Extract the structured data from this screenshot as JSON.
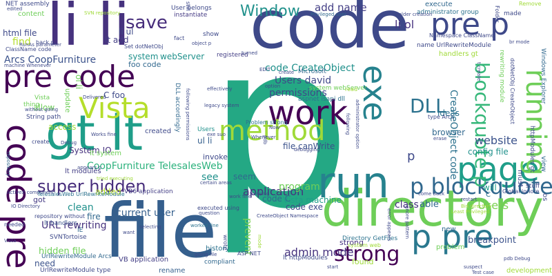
{
  "words": [
    {
      "text": "p",
      "color": "#24a884"
    },
    {
      "text": "code",
      "color": "#3e4989"
    },
    {
      "text": "file",
      "color": "#355f8d"
    },
    {
      "text": "directory",
      "color": "#6ece58"
    },
    {
      "text": "li li",
      "color": "#46327e"
    },
    {
      "text": "pre code",
      "color": "#440154"
    },
    {
      "text": "gt lt",
      "color": "#1f9e89"
    },
    {
      "text": "Vista",
      "color": "#b5de2b"
    },
    {
      "text": "work",
      "color": "#440154"
    },
    {
      "text": "run",
      "color": "#26828e"
    },
    {
      "text": "page",
      "color": "#1f9e89"
    },
    {
      "text": "method",
      "color": "#a0da39"
    },
    {
      "text": "p pre",
      "color": "#2a788e"
    },
    {
      "text": "pre p",
      "color": "#3e4989"
    },
    {
      "text": "code pre",
      "color": "#440154"
    },
    {
      "text": "p blockquote",
      "color": "#31688e"
    },
    {
      "text": "super hidden",
      "color": "#472d7b"
    },
    {
      "text": "blockquote p",
      "color": "#35b779"
    },
    {
      "text": "running",
      "color": "#6ece58"
    },
    {
      "text": "exe",
      "color": "#26828e"
    },
    {
      "text": "strong",
      "color": "#440154"
    },
    {
      "text": "DLL",
      "color": "#2c728e"
    },
    {
      "text": "save",
      "color": "#472d7b"
    },
    {
      "text": "Window",
      "color": "#21918c"
    },
    {
      "text": "add name",
      "color": "#433e85"
    },
    {
      "text": "li ol",
      "color": "#46327e"
    },
    {
      "text": "Arcs CoopFurniture",
      "color": "#3b528b"
    },
    {
      "text": "code CreateObject",
      "color": "#21918c"
    },
    {
      "text": "Users david",
      "color": "#3e4989"
    },
    {
      "text": "CoopFurniture TelesalesWeb",
      "color": "#2db27d"
    },
    {
      "text": "application",
      "color": "#46327e"
    },
    {
      "text": "Vista machine",
      "color": "#1f9e89"
    },
    {
      "text": "code exe",
      "color": "#3e4989"
    },
    {
      "text": "C Users",
      "color": "#7ad151"
    },
    {
      "text": "current user",
      "color": "#355f8d"
    },
    {
      "text": "admin mode",
      "color": "#46327e"
    },
    {
      "text": "URL rewriting",
      "color": "#46327e"
    },
    {
      "text": "config file",
      "color": "#21918c"
    },
    {
      "text": "website",
      "color": "#3b528b"
    },
    {
      "text": "breakpoint",
      "color": "#3b528b"
    },
    {
      "text": "clean",
      "color": "#21918c"
    },
    {
      "text": "program",
      "color": "#6ece58"
    },
    {
      "text": "permissions",
      "color": "#3e4989"
    },
    {
      "text": "file canWrite",
      "color": "#3b528b"
    },
    {
      "text": "ideas",
      "color": "#2c728e"
    },
    {
      "text": "class",
      "color": "#46327e"
    },
    {
      "text": "able",
      "color": "#31688e"
    },
    {
      "text": "will",
      "color": "#1f9e89"
    },
    {
      "text": "html file",
      "color": "#3e4989"
    },
    {
      "text": "find",
      "color": "#b5de2b"
    },
    {
      "text": "content",
      "color": "#6ece58"
    },
    {
      "text": "li ul",
      "color": "#3e4989"
    },
    {
      "text": "lt add",
      "color": "#433e85"
    },
    {
      "text": "system",
      "color": "#21918c"
    },
    {
      "text": "webServer",
      "color": "#21918c"
    },
    {
      "text": "registered",
      "color": "#433e85"
    },
    {
      "text": "foo code",
      "color": "#31688e"
    },
    {
      "text": "C foo",
      "color": "#3e4989"
    },
    {
      "text": "System IO",
      "color": "#46327e"
    },
    {
      "text": "lt modules",
      "color": "#433e85"
    },
    {
      "text": "lt system",
      "color": "#6ece58"
    },
    {
      "text": "need",
      "color": "#3b528b"
    },
    {
      "text": "hidden file",
      "color": "#6ece58"
    },
    {
      "text": "got",
      "color": "#443983"
    },
    {
      "text": "see",
      "color": "#21918c"
    },
    {
      "text": "seem",
      "color": "#31688e"
    },
    {
      "text": "code C",
      "color": "#31688e"
    },
    {
      "text": "p",
      "color": "#3e4989"
    },
    {
      "text": "VB application",
      "color": "#433e85"
    },
    {
      "text": "history",
      "color": "#2c728e"
    },
    {
      "text": "rename",
      "color": "#355f8d"
    },
    {
      "text": "invoke",
      "color": "#3e4989"
    },
    {
      "text": "prevent",
      "color": "#7ad151"
    },
    {
      "text": "found",
      "color": "#a0da39"
    },
    {
      "text": "strong",
      "color": "#46327e"
    },
    {
      "text": "ul li",
      "color": "#355f8d"
    },
    {
      "text": "lt httpModules",
      "color": "#3e4989"
    },
    {
      "text": "Directory GetFiles",
      "color": "#2c728e"
    },
    {
      "text": "problem",
      "color": "#6ece58"
    },
    {
      "text": "browser",
      "color": "#31688e"
    },
    {
      "text": "allow",
      "color": "#6ece58"
    },
    {
      "text": "NET assembly",
      "color": "#3e4989"
    },
    {
      "text": "User belongs",
      "color": "#3e4989"
    },
    {
      "text": "execute",
      "color": "#31688e"
    },
    {
      "text": "instantiate",
      "color": "#443983"
    },
    {
      "text": "administrator group",
      "color": "#2c728e"
    },
    {
      "text": "name UrlRewriteModule",
      "color": "#3e4989"
    },
    {
      "text": "Microsoft",
      "color": "#31688e"
    },
    {
      "text": "system webServer",
      "color": "#6ece58"
    },
    {
      "text": "VB6 application",
      "color": "#433e85"
    },
    {
      "text": "String path",
      "color": "#3e4989"
    },
    {
      "text": "thing",
      "color": "#6ece58"
    },
    {
      "text": "access",
      "color": "#a0da39"
    },
    {
      "text": "created",
      "color": "#3e4989"
    },
    {
      "text": "added",
      "color": "#b5de2b"
    },
    {
      "text": "Vista",
      "color": "#6ece58"
    },
    {
      "text": "fire",
      "color": "#31688e"
    },
    {
      "text": "lt handlers",
      "color": "#3b528b"
    },
    {
      "text": "IE",
      "color": "#31688e"
    },
    {
      "text": "SVNTortoise",
      "color": "#3e4989"
    },
    {
      "text": "UrlRewriteModule Arcs",
      "color": "#31688e"
    },
    {
      "text": "UrlRewriteModule type",
      "color": "#3e4989"
    },
    {
      "text": "TelesalesWeb UrlRewriteModule",
      "color": "#2c728e"
    },
    {
      "text": "repository without",
      "color": "#3e4989"
    },
    {
      "text": "new",
      "color": "#31688e"
    },
    {
      "text": "development",
      "color": "#a0da39"
    },
    {
      "text": "compliant",
      "color": "#31688e"
    },
    {
      "text": "ASP NET",
      "color": "#3e4989"
    },
    {
      "text": "wrote",
      "color": "#3e4989"
    },
    {
      "text": "executed using",
      "color": "#3e4989"
    },
    {
      "text": "handlers gt",
      "color": "#a0da39"
    },
    {
      "text": "Namespace ClassName",
      "color": "#3e4989"
    },
    {
      "text": "Windows Explorer",
      "color": "#31688e"
    },
    {
      "text": "httpModules gt",
      "color": "#3e4989"
    },
    {
      "text": "Global ignore",
      "color": "#3e4989"
    },
    {
      "text": "stuff",
      "color": "#3e4989"
    },
    {
      "text": "must",
      "color": "#3e4989"
    },
    {
      "text": "C",
      "color": "#2c728e"
    },
    {
      "text": "view",
      "color": "#31688e"
    },
    {
      "text": "os",
      "color": "#3e4989"
    },
    {
      "text": "aspnet isapi dll",
      "color": "#2c728e"
    },
    {
      "text": "Problem strong",
      "color": "#2c728e"
    },
    {
      "text": "Users",
      "color": "#21918c"
    },
    {
      "text": "fact",
      "color": "#3e4989"
    },
    {
      "text": "show",
      "color": "#3e4989"
    },
    {
      "text": "made",
      "color": "#3e4989"
    },
    {
      "text": "Remove",
      "color": "#a0da39"
    },
    {
      "text": "Folder",
      "color": "#3e4989"
    },
    {
      "text": "RunAs parameter",
      "color": "#3e4989"
    },
    {
      "text": "ClassName code",
      "color": "#3e4989"
    },
    {
      "text": "SVN repository",
      "color": "#a0da39"
    },
    {
      "text": "Set dotNetObj",
      "color": "#3e4989"
    },
    {
      "text": "object p",
      "color": "#3e4989"
    },
    {
      "text": "back p",
      "color": "#3e4989"
    },
    {
      "text": "Privileged user",
      "color": "#31688e"
    },
    {
      "text": "Folder creation",
      "color": "#3e4989"
    },
    {
      "text": "edited",
      "color": "#3e4989"
    },
    {
      "text": "still",
      "color": "#3e4989"
    },
    {
      "text": "turned",
      "color": "#3e4989"
    },
    {
      "text": "machine Whenever",
      "color": "#3e4989"
    },
    {
      "text": "Debug",
      "color": "#3e4989"
    },
    {
      "text": "debugging",
      "color": "#3e4989"
    },
    {
      "text": "Whenever",
      "color": "#3e4989"
    },
    {
      "text": "certain areas",
      "color": "#3e4989"
    },
    {
      "text": "erase",
      "color": "#3e4989"
    },
    {
      "text": "Least Privileged",
      "color": "#a0da39"
    },
    {
      "text": "error appears",
      "color": "#3e4989"
    },
    {
      "text": "restart",
      "color": "#3e4989"
    },
    {
      "text": "Bin directory",
      "color": "#a0da39"
    },
    {
      "text": "suspect",
      "color": "#3e4989"
    },
    {
      "text": "Test case",
      "color": "#3e4989"
    },
    {
      "text": "pdb Debug",
      "color": "#3e4989"
    },
    {
      "text": "start",
      "color": "#3e4989"
    },
    {
      "text": "mode",
      "color": "#a0da39"
    },
    {
      "text": "worked fine",
      "color": "#2c728e"
    },
    {
      "text": "want",
      "color": "#3e4989"
    },
    {
      "text": "selecting",
      "color": "#3e4989"
    },
    {
      "text": "question",
      "color": "#3e4989"
    },
    {
      "text": "work fine",
      "color": "#3e4989"
    },
    {
      "text": "CreateObject Namespace",
      "color": "#3e4989"
    },
    {
      "text": "going file",
      "color": "#3e4989"
    },
    {
      "text": "system web",
      "color": "#a0da39"
    },
    {
      "text": "tried executing",
      "color": "#a0da39"
    },
    {
      "text": "Works fine",
      "color": "#3e4989"
    },
    {
      "text": "appears p",
      "color": "#3e4989"
    },
    {
      "text": "ActiveX component",
      "color": "#3e4989"
    },
    {
      "text": "IO Directory",
      "color": "#3e4989"
    },
    {
      "text": "repository",
      "color": "#31688e"
    },
    {
      "text": "needed",
      "color": "#3e4989"
    },
    {
      "text": "create",
      "color": "#3e4989"
    },
    {
      "text": "thinking",
      "color": "#3e4989"
    },
    {
      "text": "exe suo",
      "color": "#3e4989"
    },
    {
      "text": "Now",
      "color": "#3e4989"
    },
    {
      "text": "legacy system",
      "color": "#3e4989"
    },
    {
      "text": "effectively",
      "color": "#3e4989"
    },
    {
      "text": "Delivered",
      "color": "#3e4989"
    },
    {
      "text": "EDIT",
      "color": "#3e4989"
    },
    {
      "text": "come back",
      "color": "#3e4989"
    },
    {
      "text": "option",
      "color": "#3e4989"
    },
    {
      "text": "read",
      "color": "#a0da39"
    },
    {
      "text": "type Arcs",
      "color": "#3e4989"
    },
    {
      "text": "without going",
      "color": "#3e4989"
    },
    {
      "text": "create",
      "color": "#3e4989"
    },
    {
      "text": "br mode",
      "color": "#3e4989"
    },
    {
      "text": "ol li",
      "color": "#6ece58"
    },
    {
      "text": "update",
      "color": "#6ece58"
    },
    {
      "text": "DLL accordingly",
      "color": "#31688e"
    },
    {
      "text": "following permissions",
      "color": "#3e4989"
    },
    {
      "text": "CreateObject code",
      "color": "#2c728e"
    },
    {
      "text": "dotNetObj CreateObject",
      "color": "#3e4989"
    },
    {
      "text": "rewriting module",
      "color": "#6ece58"
    },
    {
      "text": "t create",
      "color": "#3e4989"
    },
    {
      "text": "administrator option",
      "color": "#3e4989"
    },
    {
      "text": "pdb",
      "color": "#3e4989"
    },
    {
      "text": "ignore pattern",
      "color": "#3e4989"
    },
    {
      "text": "following",
      "color": "#3e4989"
    },
    {
      "text": "Vista",
      "color": "#3e4989"
    }
  ]
}
